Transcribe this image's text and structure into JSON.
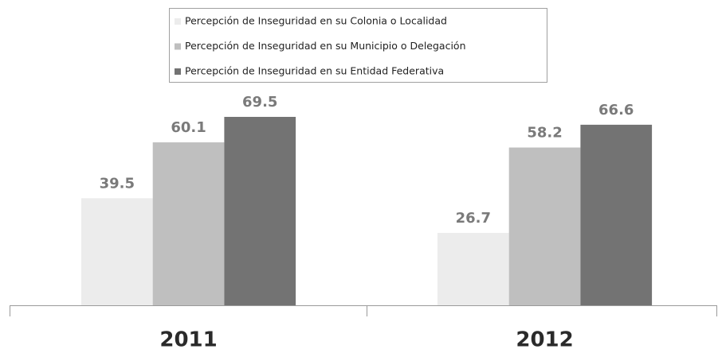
{
  "chart_data": {
    "type": "bar",
    "categories": [
      "2011",
      "2012"
    ],
    "series": [
      {
        "name": "Percepción de Inseguridad en su Colonia o Localidad",
        "color": "#ececec",
        "values": [
          39.5,
          26.7
        ]
      },
      {
        "name": "Percepción de Inseguridad en su Municipio o Delegación",
        "color": "#bfbfbf",
        "values": [
          60.1,
          58.2
        ]
      },
      {
        "name": "Percepción de Inseguridad en su Entidad Federativa",
        "color": "#737373",
        "values": [
          69.5,
          66.6
        ]
      }
    ]
  }
}
